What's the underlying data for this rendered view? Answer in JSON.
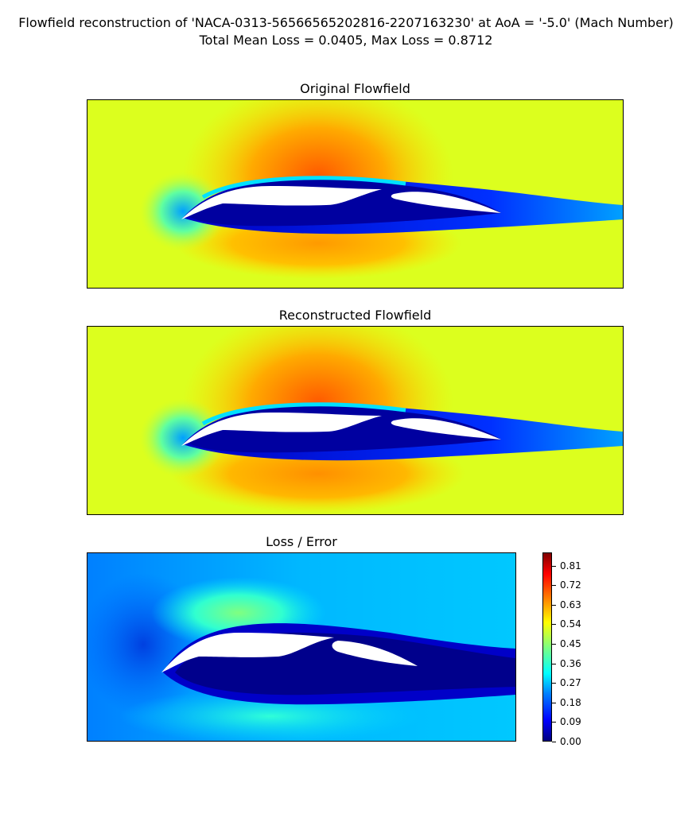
{
  "chart_data": {
    "type": "heatmap",
    "title": "Flowfield reconstruction of 'NACA-0313-56566565202816-2207163230' at AoA = '-5.0' (Mach Number)",
    "subtitle": "Total Mean Loss = 0.0405, Max Loss = 0.8712",
    "panels": [
      {
        "title": "Original Flowfield",
        "colormap": "jet",
        "grid": false,
        "ticks": false
      },
      {
        "title": "Reconstructed Flowfield",
        "colormap": "jet",
        "grid": false,
        "ticks": false
      },
      {
        "title": "Loss / Error",
        "colormap": "jet",
        "grid": false,
        "ticks": false
      }
    ],
    "colorbar": {
      "range": [
        0.0,
        0.8712
      ],
      "ticks": [
        0.0,
        0.09,
        0.18,
        0.27,
        0.36,
        0.45,
        0.54,
        0.63,
        0.72,
        0.81
      ],
      "tick_labels": [
        "0.00",
        "0.09",
        "0.18",
        "0.27",
        "0.36",
        "0.45",
        "0.54",
        "0.63",
        "0.72",
        "0.81"
      ]
    },
    "colors": {
      "dark-blue": "#00007f",
      "blue": "#0000ff",
      "cyan": "#00ffff",
      "yellow": "#ffff00",
      "orange": "#ff7f00",
      "red": "#ff0000",
      "dark-red": "#7f0000"
    }
  }
}
